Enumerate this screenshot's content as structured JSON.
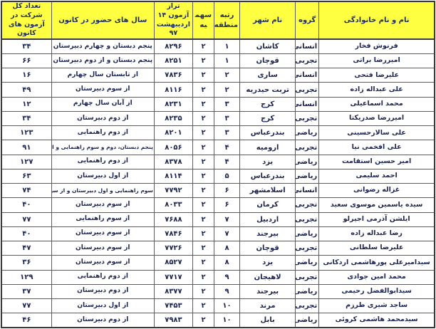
{
  "colors": {
    "header_bg": "#ffff42",
    "header_text": "#1c2c5e",
    "body_text": "#1b2350",
    "border": "#5c5c5c"
  },
  "table": {
    "columns": [
      {
        "key": "name",
        "label": "نام و نام خانوادگی"
      },
      {
        "key": "group",
        "label": "گروه"
      },
      {
        "key": "city",
        "label": "نام شهر"
      },
      {
        "key": "region_rank",
        "label": "رتبه منطقه"
      },
      {
        "key": "quota",
        "label": "سهمیه"
      },
      {
        "key": "score",
        "label": "تراز آزمون ۱۴ اردیبهشت ۹۷"
      },
      {
        "key": "years",
        "label": "سال های حضور در کانون"
      },
      {
        "key": "total_exams",
        "label": "تعداد کل شرکت در آزمون های کانون"
      }
    ],
    "rows": [
      {
        "name": "فرنوش فخار",
        "group": "انسانی",
        "city": "کاشان",
        "region_rank": "۱",
        "quota": "۲",
        "score": "۸۲۹۶",
        "years": "پنجم دبستان و چهارم دبیرستان",
        "total_exams": "۳۴"
      },
      {
        "name": "امیررضا براتی",
        "group": "تجربی",
        "city": "قوچان",
        "region_rank": "۱",
        "quota": "۲",
        "score": "۸۲۵۱",
        "years": "پنجم دبستان و از دوم دبیرستان",
        "total_exams": "۶۶"
      },
      {
        "name": "علیرضا فتحی",
        "group": "انسانی",
        "city": "ساری",
        "region_rank": "۲",
        "quota": "۲",
        "score": "۷۸۳۶",
        "years": "از تابستان سال چهارم",
        "total_exams": "۱۶"
      },
      {
        "name": "علی عبداله زاده",
        "group": "تجربی",
        "city": "تربت حیدریه",
        "region_rank": "۲",
        "quota": "۲",
        "score": "۸۱۱۶",
        "years": "از سوم دبیرستان",
        "total_exams": "۴۹"
      },
      {
        "name": "محمد اسماعیلی",
        "group": "انسانی",
        "city": "کرج",
        "region_rank": "۳",
        "quota": "۲",
        "score": "۸۲۳۱",
        "years": "از آبان سال چهارم",
        "total_exams": "۱۲"
      },
      {
        "name": "امیررضا صدریکتا",
        "group": "تجربی",
        "city": "کرج",
        "region_rank": "۳",
        "quota": "۲",
        "score": "۸۲۳۵",
        "years": "از دوم دبیرستان",
        "total_exams": "۳۴"
      },
      {
        "name": "علی سالارحسینی",
        "group": "ریاضی",
        "city": "بندرعباس",
        "region_rank": "۳",
        "quota": "۲",
        "score": "۸۲۰۱",
        "years": "از دوم راهنمایی",
        "total_exams": "۱۲۳"
      },
      {
        "name": "علی افخمی نیا",
        "group": "تجربی",
        "city": "ارومیه",
        "region_rank": "۴",
        "quota": "۲",
        "score": "۸۰۵۶",
        "years": "پنجم دبستان، دوم و سوم راهنمایی و از دوم دبیرستان",
        "total_exams": "۹۱"
      },
      {
        "name": "امیر حسین استقامت",
        "group": "ریاضی",
        "city": "یزد",
        "region_rank": "۴",
        "quota": "۲",
        "score": "۸۳۷۸",
        "years": "از دوم راهنمایی",
        "total_exams": "۱۲۷"
      },
      {
        "name": "احمد سلیمی",
        "group": "ریاضی",
        "city": "بندرعباس",
        "region_rank": "۵",
        "quota": "۲",
        "score": "۸۱۱۴",
        "years": "از اول دبیرستان",
        "total_exams": "۶۳"
      },
      {
        "name": "غزاله رضوانی",
        "group": "انسانی",
        "city": "اسلامشهر",
        "region_rank": "۶",
        "quota": "۲",
        "score": "۷۷۹۲",
        "years": "سوم راهنمایی و اول دبیرستان و از سوم دبیرستان",
        "total_exams": "۷۴"
      },
      {
        "name": "سیده یاسمین موسوی سعید",
        "group": "تجربی",
        "city": "کرمان",
        "region_rank": "۶",
        "quota": "۲",
        "score": "۸۰۳۳",
        "years": "از سوم دبیرستان",
        "total_exams": "۴۰"
      },
      {
        "name": "ایلشن آذرمی اجیرلو",
        "group": "تجربی",
        "city": "اردبیل",
        "region_rank": "۷",
        "quota": "۲",
        "score": "۷۶۸۸",
        "years": "از سوم راهنمایی",
        "total_exams": "۷۷"
      },
      {
        "name": "رضا عبداله زاده",
        "group": "ریاضی",
        "city": "بیرجند",
        "region_rank": "۷",
        "quota": "۲",
        "score": "۷۸۴۶",
        "years": "از سوم دبیرستان",
        "total_exams": "۴۰"
      },
      {
        "name": "علیرضا سلطانی",
        "group": "تجربی",
        "city": "قوچان",
        "region_rank": "۸",
        "quota": "۲",
        "score": "۷۷۲۶",
        "years": "از سوم دبیرستان",
        "total_exams": "۴۷"
      },
      {
        "name": "سیدامیرعلی پورهاشمی اردکانی",
        "group": "ریاضی",
        "city": "یزد",
        "region_rank": "۸",
        "quota": "۲",
        "score": "۸۵۲۷",
        "years": "از سوم دبیرستان",
        "total_exams": "۳۶"
      },
      {
        "name": "محمد امین جوادی",
        "group": "تجربی",
        "city": "لاهیجان",
        "region_rank": "۹",
        "quota": "۲",
        "score": "۷۷۱۷",
        "years": "از دوم راهنمایی",
        "total_exams": "۱۲۹"
      },
      {
        "name": "سیدابوالفضل رحیمی",
        "group": "ریاضی",
        "city": "بیرجند",
        "region_rank": "۹",
        "quota": "۲",
        "score": "۸۳۷۷",
        "years": "از دوم دبیرستان",
        "total_exams": "۳۷"
      },
      {
        "name": "ساجد شیری طرزم",
        "group": "تجربی",
        "city": "مرند",
        "region_rank": "۱۰",
        "quota": "۲",
        "score": "۷۴۵۳",
        "years": "از اول دبیرستان",
        "total_exams": "۷۷"
      },
      {
        "name": "سیدمحمد هاشمی کروئی",
        "group": "ریاضی",
        "city": "بابل",
        "region_rank": "۱۰",
        "quota": "۲",
        "score": "۷۹۸۳",
        "years": "از دوم دبیرستان",
        "total_exams": "۴۶"
      }
    ]
  }
}
